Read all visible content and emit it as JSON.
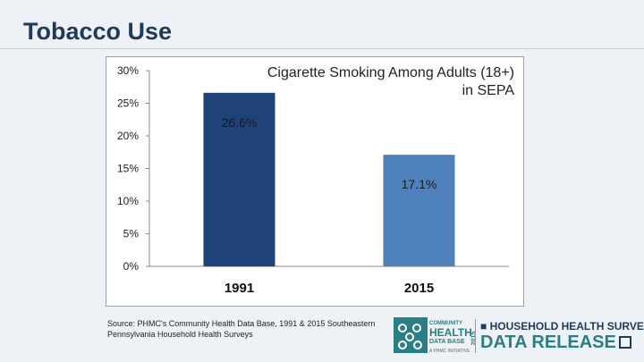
{
  "slide": {
    "title": "Tobacco Use"
  },
  "chart_data": {
    "type": "bar",
    "title": "Cigarette Smoking Among Adults (18+)",
    "subtitle": "in SEPA",
    "categories": [
      "1991",
      "2015"
    ],
    "values": [
      26.6,
      17.1
    ],
    "data_labels": [
      "26.6%",
      "17.1%"
    ],
    "bar_colors": [
      "#1f4279",
      "#4f81bd"
    ],
    "ylim": [
      0,
      30
    ],
    "yticks": [
      0,
      5,
      10,
      15,
      20,
      25,
      30
    ],
    "ytick_labels": [
      "0%",
      "5%",
      "10%",
      "15%",
      "20%",
      "25%",
      "30%"
    ],
    "grid": false,
    "legend": "none"
  },
  "source": {
    "text": "Source: PHMC's Community Health Data Base, 1991 & 2015 Southeastern Pennsylvania Household Health Surveys"
  },
  "logo": {
    "community": "COMMUNITY",
    "health": "HEALTH",
    "data_base": "DATA BASE",
    "initiative": "A PHMC INITIATIVE",
    "year": "2015",
    "survey": "HOUSEHOLD HEALTH SURVEY",
    "release": "DATA RELEASE",
    "bullet": "■"
  },
  "colors": {
    "title": "#1f3b5c",
    "accent": "#2a7f86"
  }
}
